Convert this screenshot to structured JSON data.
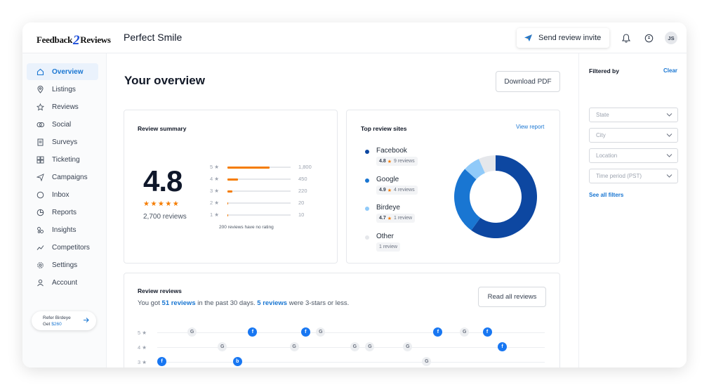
{
  "header": {
    "logo_part1": "Feedback",
    "logo_part2": "2",
    "logo_part3": "Reviews",
    "business_name": "Perfect Smile",
    "invite_label": "Send review invite",
    "avatar_initials": "JS"
  },
  "sidebar": {
    "items": [
      {
        "label": "Overview",
        "icon": "home-icon",
        "active": true
      },
      {
        "label": "Listings",
        "icon": "location-pin-icon"
      },
      {
        "label": "Reviews",
        "icon": "star-icon"
      },
      {
        "label": "Social",
        "icon": "social-icon"
      },
      {
        "label": "Surveys",
        "icon": "survey-icon"
      },
      {
        "label": "Ticketing",
        "icon": "ticket-grid-icon"
      },
      {
        "label": "Campaigns",
        "icon": "paper-plane-icon"
      },
      {
        "label": "Inbox",
        "icon": "chat-icon"
      },
      {
        "label": "Reports",
        "icon": "pie-chart-icon"
      },
      {
        "label": "Insights",
        "icon": "insights-icon"
      },
      {
        "label": "Competitors",
        "icon": "trend-line-icon"
      },
      {
        "label": "Settings",
        "icon": "gear-icon"
      },
      {
        "label": "Account",
        "icon": "user-icon"
      }
    ],
    "refer_line1": "Refer Birdeye",
    "refer_get": "Get ",
    "refer_amount": "$260"
  },
  "main": {
    "title": "Your overview",
    "download_label": "Download PDF"
  },
  "review_summary": {
    "title": "Review summary",
    "rating": "4.8",
    "stars": "★★★★★",
    "review_count": "2,700 reviews",
    "distribution": [
      {
        "label": "5 ★",
        "count": "1,800",
        "fraction": 0.6667
      },
      {
        "label": "4 ★",
        "count": "450",
        "fraction": 0.1667
      },
      {
        "label": "3 ★",
        "count": "220",
        "fraction": 0.0815
      },
      {
        "label": "2 ★",
        "count": "20",
        "fraction": 0.0074
      },
      {
        "label": "1 ★",
        "count": "10",
        "fraction": 0.0037
      }
    ],
    "no_rating_note": "200 reviews have no rating"
  },
  "top_sites": {
    "title": "Top review sites",
    "view_report": "View report",
    "sites": [
      {
        "name": "Facebook",
        "rating": "4.8",
        "reviews": "9 reviews",
        "color": "#0d47a1",
        "share": 9
      },
      {
        "name": "Google",
        "rating": "4.9",
        "reviews": "4 reviews",
        "color": "#1976d2",
        "share": 4
      },
      {
        "name": "Birdeye",
        "rating": "4.7",
        "reviews": "1 review",
        "color": "#90caf9",
        "share": 1
      },
      {
        "name": "Other",
        "rating": "",
        "reviews": "1 review",
        "color": "#e5e7eb",
        "share": 1
      }
    ]
  },
  "review_reviews": {
    "title": "Review reviews",
    "desc_1": "You got ",
    "link_1": "51 reviews",
    "desc_2": " in the past 30 days. ",
    "link_2": "5 reviews",
    "desc_3": " were 3-stars or less.",
    "read_all": "Read all reviews",
    "rows": [
      {
        "label": "5 ★",
        "items": [
          {
            "src": "g",
            "t": 0.08
          },
          {
            "src": "f",
            "t": 0.24
          },
          {
            "src": "f",
            "t": 0.38
          },
          {
            "src": "g",
            "t": 0.42
          },
          {
            "src": "f",
            "t": 0.73
          },
          {
            "src": "g",
            "t": 0.8
          },
          {
            "src": "f",
            "t": 0.86
          }
        ]
      },
      {
        "label": "4 ★",
        "items": [
          {
            "src": "g",
            "t": 0.16
          },
          {
            "src": "g",
            "t": 0.35
          },
          {
            "src": "g",
            "t": 0.51
          },
          {
            "src": "g",
            "t": 0.55
          },
          {
            "src": "g",
            "t": 0.65
          },
          {
            "src": "f",
            "t": 0.9
          }
        ]
      },
      {
        "label": "3 ★",
        "items": [
          {
            "src": "f",
            "t": 0.0
          },
          {
            "src": "b",
            "t": 0.2
          },
          {
            "src": "g",
            "t": 0.7
          }
        ]
      }
    ]
  },
  "filters": {
    "title": "Filtered by",
    "clear": "Clear",
    "selects": [
      "State",
      "City",
      "Location",
      "Time period (PST)"
    ],
    "see_all": "See all filters"
  }
}
